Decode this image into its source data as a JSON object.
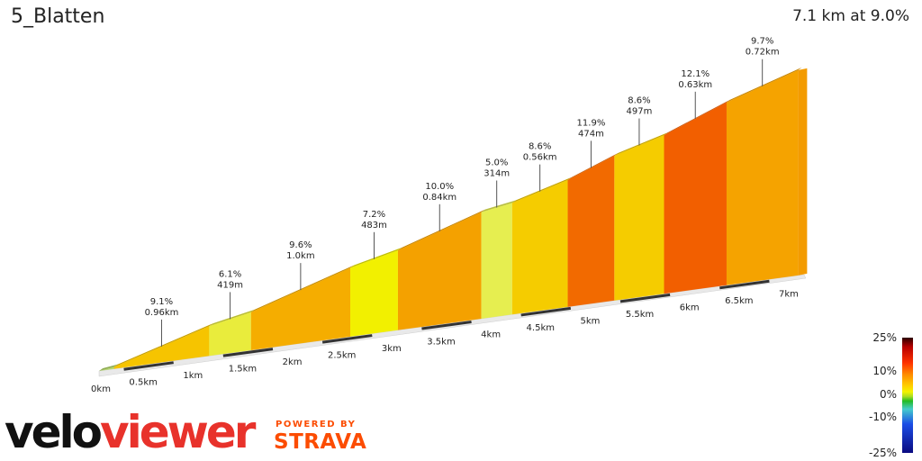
{
  "segment": {
    "title": "5_Blatten",
    "summary": "7.1 km at 9.0%"
  },
  "chart_data": {
    "type": "area",
    "title": "5_Blatten",
    "x_unit": "km",
    "distance_ticks": [
      "0km",
      "0.5km",
      "1km",
      "1.5km",
      "2km",
      "2.5km",
      "3km",
      "3.5km",
      "4km",
      "4.5km",
      "5km",
      "5.5km",
      "6km",
      "6.5km",
      "7km"
    ],
    "total_km": 7.1,
    "average_gradient_pct": 9.0,
    "sections": [
      {
        "start_km": 0.0,
        "end_km": 0.15,
        "gradient_pct": 4.0,
        "color": "#b5d96a"
      },
      {
        "start_km": 0.15,
        "end_km": 1.11,
        "gradient_pct": 9.1,
        "color": "#f6c400",
        "label_grade": "9.1%",
        "label_len": "0.96km"
      },
      {
        "start_km": 1.11,
        "end_km": 1.53,
        "gradient_pct": 6.1,
        "color": "#e9ec3c",
        "label_grade": "6.1%",
        "label_len": "419m"
      },
      {
        "start_km": 1.53,
        "end_km": 2.53,
        "gradient_pct": 9.6,
        "color": "#f5ad00",
        "label_grade": "9.6%",
        "label_len": "1.0km"
      },
      {
        "start_km": 2.53,
        "end_km": 3.01,
        "gradient_pct": 7.2,
        "color": "#f2f000",
        "label_grade": "7.2%",
        "label_len": "483m"
      },
      {
        "start_km": 3.01,
        "end_km": 3.85,
        "gradient_pct": 10.0,
        "color": "#f4a100",
        "label_grade": "10.0%",
        "label_len": "0.84km"
      },
      {
        "start_km": 3.85,
        "end_km": 4.16,
        "gradient_pct": 5.0,
        "color": "#e6ee50",
        "label_grade": "5.0%",
        "label_len": "314m"
      },
      {
        "start_km": 4.16,
        "end_km": 4.72,
        "gradient_pct": 8.6,
        "color": "#f5cc00",
        "label_grade": "8.6%",
        "label_len": "0.56km"
      },
      {
        "start_km": 4.72,
        "end_km": 5.19,
        "gradient_pct": 11.9,
        "color": "#f26a00",
        "label_grade": "11.9%",
        "label_len": "474m"
      },
      {
        "start_km": 5.19,
        "end_km": 5.69,
        "gradient_pct": 8.6,
        "color": "#f5cc00",
        "label_grade": "8.6%",
        "label_len": "497m"
      },
      {
        "start_km": 5.69,
        "end_km": 6.32,
        "gradient_pct": 12.1,
        "color": "#f25f00",
        "label_grade": "12.1%",
        "label_len": "0.63km"
      },
      {
        "start_km": 6.32,
        "end_km": 7.04,
        "gradient_pct": 9.7,
        "color": "#f5a300",
        "label_grade": "9.7%",
        "label_len": "0.72km"
      }
    ],
    "legend": {
      "ticks": [
        "25%",
        "10%",
        "0%",
        "-10%",
        "-25%"
      ],
      "range": [
        -25,
        25
      ]
    }
  },
  "branding": {
    "logo_part1": "velo",
    "logo_part2": "viewer",
    "powered_by": "POWERED BY",
    "strava": "STRAVA"
  }
}
